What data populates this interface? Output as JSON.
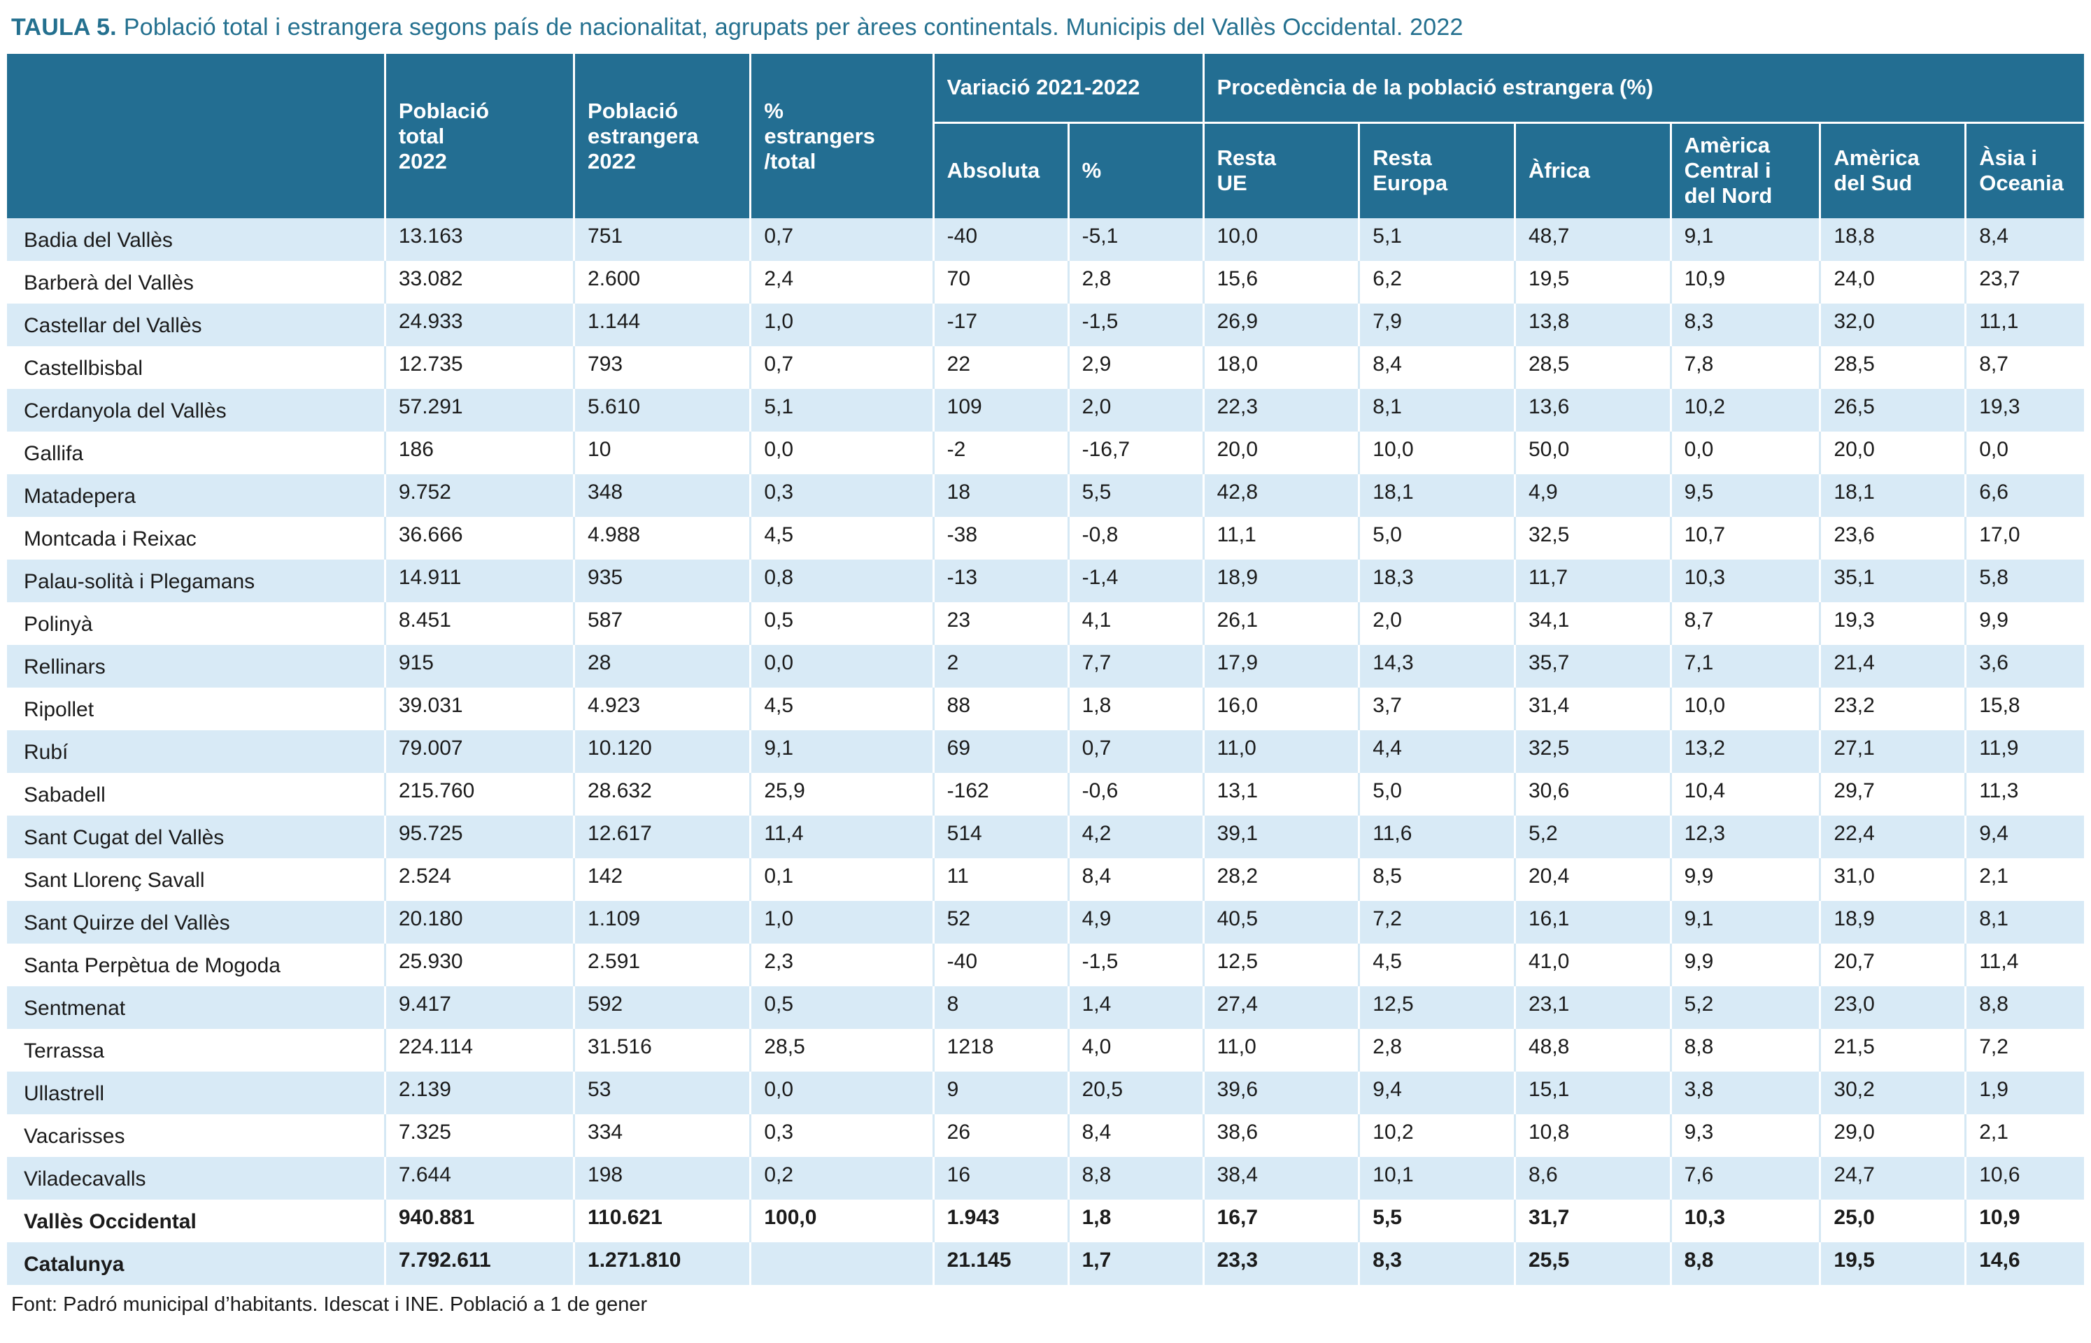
{
  "title": {
    "prefix": "TAULA 5.",
    "text": "Població total i estrangera segons país de nacionalitat, agrupats per àrees continentals. Municipis del Vallès Occidental. 2022"
  },
  "source_note": "Font: Padró municipal d’habitants. Idescat i INE. Població a 1 de gener",
  "colors": {
    "header_bg": "#236E92",
    "stripe": "#D8EAF6",
    "title": "#24708F",
    "text": "#1B1B1B",
    "header_text": "#FFFFFF"
  },
  "chart_data": {
    "type": "table",
    "title": "TAULA 5. Població total i estrangera segons país de nacionalitat, agrupats per àrees continentals. Municipis del Vallès Occidental. 2022",
    "column_headers": {
      "municipality": "",
      "poblacio_total": "Població\ntotal\n2022",
      "poblacio_estrangera": "Població\nestrangera\n2022",
      "pct_estrangers_total": "%\nestrangers\n/total"
    },
    "groups": [
      {
        "label": "Variació 2021-2022",
        "children": [
          "Absoluta",
          "%"
        ]
      },
      {
        "label": "Procedència de la població estrangera (%)",
        "children": [
          "Resta\nUE",
          "Resta\nEuropa",
          "Àfrica",
          "Amèrica\nCentral i\ndel Nord",
          "Amèrica\ndel Sud",
          "Àsia i\nOceania"
        ]
      }
    ],
    "rows": [
      {
        "name": "Badia del Vallès",
        "bold": false,
        "values": [
          "13.163",
          "751",
          "0,7",
          "-40",
          "-5,1",
          "10,0",
          "5,1",
          "48,7",
          "9,1",
          "18,8",
          "8,4"
        ]
      },
      {
        "name": "Barberà del Vallès",
        "bold": false,
        "values": [
          "33.082",
          "2.600",
          "2,4",
          "70",
          "2,8",
          "15,6",
          "6,2",
          "19,5",
          "10,9",
          "24,0",
          "23,7"
        ]
      },
      {
        "name": "Castellar del Vallès",
        "bold": false,
        "values": [
          "24.933",
          "1.144",
          "1,0",
          "-17",
          "-1,5",
          "26,9",
          "7,9",
          "13,8",
          "8,3",
          "32,0",
          "11,1"
        ]
      },
      {
        "name": "Castellbisbal",
        "bold": false,
        "values": [
          "12.735",
          "793",
          "0,7",
          "22",
          "2,9",
          "18,0",
          "8,4",
          "28,5",
          "7,8",
          "28,5",
          "8,7"
        ]
      },
      {
        "name": "Cerdanyola del Vallès",
        "bold": false,
        "values": [
          "57.291",
          "5.610",
          "5,1",
          "109",
          "2,0",
          "22,3",
          "8,1",
          "13,6",
          "10,2",
          "26,5",
          "19,3"
        ]
      },
      {
        "name": "Gallifa",
        "bold": false,
        "values": [
          "186",
          "10",
          "0,0",
          "-2",
          "-16,7",
          "20,0",
          "10,0",
          "50,0",
          "0,0",
          "20,0",
          "0,0"
        ]
      },
      {
        "name": "Matadepera",
        "bold": false,
        "values": [
          "9.752",
          "348",
          "0,3",
          "18",
          "5,5",
          "42,8",
          "18,1",
          "4,9",
          "9,5",
          "18,1",
          "6,6"
        ]
      },
      {
        "name": "Montcada i Reixac",
        "bold": false,
        "values": [
          "36.666",
          "4.988",
          "4,5",
          "-38",
          "-0,8",
          "11,1",
          "5,0",
          "32,5",
          "10,7",
          "23,6",
          "17,0"
        ]
      },
      {
        "name": "Palau-solità i Plegamans",
        "bold": false,
        "values": [
          "14.911",
          "935",
          "0,8",
          "-13",
          "-1,4",
          "18,9",
          "18,3",
          "11,7",
          "10,3",
          "35,1",
          "5,8"
        ]
      },
      {
        "name": "Polinyà",
        "bold": false,
        "values": [
          "8.451",
          "587",
          "0,5",
          "23",
          "4,1",
          "26,1",
          "2,0",
          "34,1",
          "8,7",
          "19,3",
          "9,9"
        ]
      },
      {
        "name": "Rellinars",
        "bold": false,
        "values": [
          "915",
          "28",
          "0,0",
          "2",
          "7,7",
          "17,9",
          "14,3",
          "35,7",
          "7,1",
          "21,4",
          "3,6"
        ]
      },
      {
        "name": "Ripollet",
        "bold": false,
        "values": [
          "39.031",
          "4.923",
          "4,5",
          "88",
          "1,8",
          "16,0",
          "3,7",
          "31,4",
          "10,0",
          "23,2",
          "15,8"
        ]
      },
      {
        "name": "Rubí",
        "bold": false,
        "values": [
          "79.007",
          "10.120",
          "9,1",
          "69",
          "0,7",
          "11,0",
          "4,4",
          "32,5",
          "13,2",
          "27,1",
          "11,9"
        ]
      },
      {
        "name": "Sabadell",
        "bold": false,
        "values": [
          "215.760",
          "28.632",
          "25,9",
          "-162",
          "-0,6",
          "13,1",
          "5,0",
          "30,6",
          "10,4",
          "29,7",
          "11,3"
        ]
      },
      {
        "name": "Sant Cugat del Vallès",
        "bold": false,
        "values": [
          "95.725",
          "12.617",
          "11,4",
          "514",
          "4,2",
          "39,1",
          "11,6",
          "5,2",
          "12,3",
          "22,4",
          "9,4"
        ]
      },
      {
        "name": "Sant Llorenç Savall",
        "bold": false,
        "values": [
          "2.524",
          "142",
          "0,1",
          "11",
          "8,4",
          "28,2",
          "8,5",
          "20,4",
          "9,9",
          "31,0",
          "2,1"
        ]
      },
      {
        "name": "Sant Quirze del Vallès",
        "bold": false,
        "values": [
          "20.180",
          "1.109",
          "1,0",
          "52",
          "4,9",
          "40,5",
          "7,2",
          "16,1",
          "9,1",
          "18,9",
          "8,1"
        ]
      },
      {
        "name": "Santa Perpètua de Mogoda",
        "bold": false,
        "values": [
          "25.930",
          "2.591",
          "2,3",
          "-40",
          "-1,5",
          "12,5",
          "4,5",
          "41,0",
          "9,9",
          "20,7",
          "11,4"
        ]
      },
      {
        "name": "Sentmenat",
        "bold": false,
        "values": [
          "9.417",
          "592",
          "0,5",
          "8",
          "1,4",
          "27,4",
          "12,5",
          "23,1",
          "5,2",
          "23,0",
          "8,8"
        ]
      },
      {
        "name": "Terrassa",
        "bold": false,
        "values": [
          "224.114",
          "31.516",
          "28,5",
          "1218",
          "4,0",
          "11,0",
          "2,8",
          "48,8",
          "8,8",
          "21,5",
          "7,2"
        ]
      },
      {
        "name": "Ullastrell",
        "bold": false,
        "values": [
          "2.139",
          "53",
          "0,0",
          "9",
          "20,5",
          "39,6",
          "9,4",
          "15,1",
          "3,8",
          "30,2",
          "1,9"
        ]
      },
      {
        "name": "Vacarisses",
        "bold": false,
        "values": [
          "7.325",
          "334",
          "0,3",
          "26",
          "8,4",
          "38,6",
          "10,2",
          "10,8",
          "9,3",
          "29,0",
          "2,1"
        ]
      },
      {
        "name": "Viladecavalls",
        "bold": false,
        "values": [
          "7.644",
          "198",
          "0,2",
          "16",
          "8,8",
          "38,4",
          "10,1",
          "8,6",
          "7,6",
          "24,7",
          "10,6"
        ]
      },
      {
        "name": "Vallès Occidental",
        "bold": true,
        "values": [
          "940.881",
          "110.621",
          "100,0",
          "1.943",
          "1,8",
          "16,7",
          "5,5",
          "31,7",
          "10,3",
          "25,0",
          "10,9"
        ]
      },
      {
        "name": "Catalunya",
        "bold": true,
        "values": [
          "7.792.611",
          "1.271.810",
          "",
          "21.145",
          "1,7",
          "23,3",
          "8,3",
          "25,5",
          "8,8",
          "19,5",
          "14,6"
        ]
      }
    ]
  }
}
